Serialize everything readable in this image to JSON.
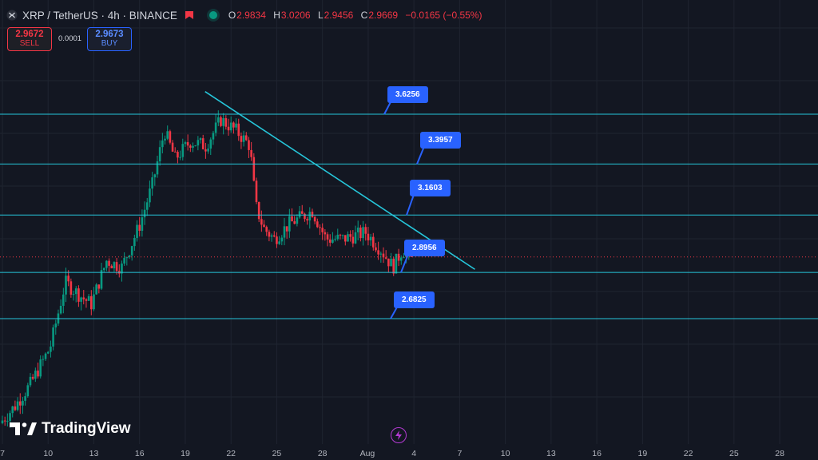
{
  "header": {
    "symbol": "XRP / TetherUS · 4h · BINANCE",
    "open_label": "O",
    "open": "2.9834",
    "high_label": "H",
    "high": "3.0206",
    "low_label": "L",
    "low": "2.9456",
    "close_label": "C",
    "close": "2.9669",
    "change": "−0.0165 (−0.55%)"
  },
  "trade": {
    "sell_price": "2.9672",
    "sell_label": "SELL",
    "spread": "0.0001",
    "buy_price": "2.9673",
    "buy_label": "BUY"
  },
  "brand": {
    "name": "TradingView"
  },
  "icons": {
    "symbol": "xrp-icon",
    "flag": "flag-icon",
    "status": "market-open-icon",
    "bolt": "bolt-icon",
    "logo": "tradingview-logo-icon"
  },
  "colors": {
    "background": "#131722",
    "bull": "#089981",
    "bear": "#f23645",
    "level_line": "#26c6da",
    "trend_line": "#26c6da",
    "callout": "#2962ff",
    "grid": "#1f2430"
  },
  "chart_data": {
    "type": "candlestick",
    "timeframe": "4h",
    "x_tick_labels": [
      "7",
      "10",
      "13",
      "16",
      "19",
      "22",
      "25",
      "28",
      "Aug",
      "4",
      "7",
      "10",
      "13",
      "16",
      "19",
      "22",
      "25",
      "28"
    ],
    "ylim": [
      2.1,
      3.95
    ],
    "horizontal_levels": [
      "3.6256",
      "3.3957",
      "3.1603",
      "2.8956",
      "2.6825"
    ],
    "trend_line": {
      "from": {
        "day": 20.3,
        "price": 3.73
      },
      "to": {
        "day": 38.0,
        "price": 2.91
      }
    },
    "current_price": 2.9669,
    "anchors": [
      {
        "day": 7.0,
        "price": 2.2
      },
      {
        "day": 8.0,
        "price": 2.28
      },
      {
        "day": 9.0,
        "price": 2.38
      },
      {
        "day": 10.3,
        "price": 2.55
      },
      {
        "day": 11.3,
        "price": 2.85
      },
      {
        "day": 12.4,
        "price": 2.78
      },
      {
        "day": 13.0,
        "price": 2.75
      },
      {
        "day": 14.0,
        "price": 2.95
      },
      {
        "day": 15.0,
        "price": 2.92
      },
      {
        "day": 16.2,
        "price": 3.12
      },
      {
        "day": 17.0,
        "price": 3.3
      },
      {
        "day": 17.8,
        "price": 3.55
      },
      {
        "day": 18.5,
        "price": 3.42
      },
      {
        "day": 19.5,
        "price": 3.5
      },
      {
        "day": 20.5,
        "price": 3.48
      },
      {
        "day": 21.5,
        "price": 3.6
      },
      {
        "day": 22.5,
        "price": 3.55
      },
      {
        "day": 23.4,
        "price": 3.48
      },
      {
        "day": 23.8,
        "price": 3.2
      },
      {
        "day": 24.3,
        "price": 3.1
      },
      {
        "day": 25.0,
        "price": 3.05
      },
      {
        "day": 26.0,
        "price": 3.12
      },
      {
        "day": 27.5,
        "price": 3.18
      },
      {
        "day": 28.4,
        "price": 3.05
      },
      {
        "day": 29.5,
        "price": 3.05
      },
      {
        "day": 31.0,
        "price": 3.08
      },
      {
        "day": 32.0,
        "price": 3.0
      },
      {
        "day": 32.8,
        "price": 2.92
      },
      {
        "day": 33.4,
        "price": 3.0
      },
      {
        "day": 33.9,
        "price": 2.97
      }
    ]
  }
}
